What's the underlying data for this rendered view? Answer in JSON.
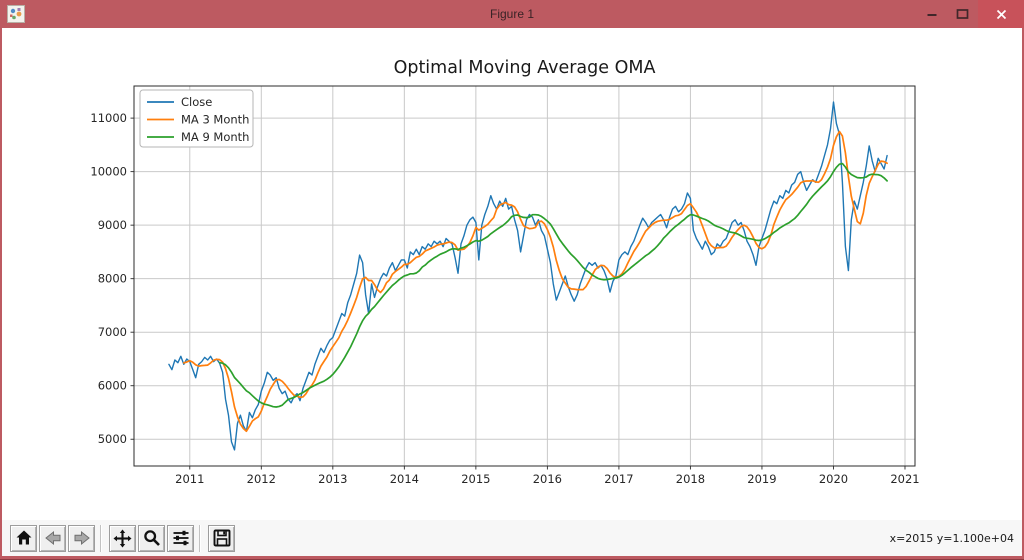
{
  "window": {
    "title": "Figure 1",
    "controls": {
      "minimize_icon": "minimize-icon",
      "maximize_icon": "maximize-icon",
      "close_icon": "close-icon"
    }
  },
  "colors": {
    "titlebar": "#bd5a61",
    "titlebar_text": "#3a2326",
    "close_button_bg": "#c8525a",
    "close_glyph": "#ffffff",
    "control_glyph": "#40272a",
    "canvas_bg": "#ffffff",
    "toolbar_bg": "#f7f7f7",
    "grid": "#c9c9c9",
    "axes_edge": "#2b2b2b",
    "series_close": "#1f77b4",
    "series_ma3": "#ff7f0e",
    "series_ma9": "#2ca02c"
  },
  "toolbar": {
    "buttons": [
      {
        "name": "home",
        "icon": "home-icon"
      },
      {
        "name": "back",
        "icon": "back-arrow-icon",
        "disabled": true
      },
      {
        "name": "forward",
        "icon": "forward-arrow-icon",
        "disabled": true
      },
      {
        "name": "pan",
        "icon": "pan-arrows-icon"
      },
      {
        "name": "zoom",
        "icon": "magnifier-icon"
      },
      {
        "name": "configure-subplots",
        "icon": "sliders-icon"
      },
      {
        "name": "save",
        "icon": "floppy-disk-icon"
      }
    ],
    "status_text": "x=2015 y=1.100e+04"
  },
  "chart_data": {
    "type": "line",
    "title": "Optimal Moving Average OMA",
    "xlabel": "",
    "ylabel": "",
    "xlim": [
      2010.22,
      2021.14
    ],
    "ylim": [
      4500,
      11600
    ],
    "x_ticks": [
      2011,
      2012,
      2013,
      2014,
      2015,
      2016,
      2017,
      2018,
      2019,
      2020,
      2021
    ],
    "y_ticks": [
      5000,
      6000,
      7000,
      8000,
      9000,
      10000,
      11000
    ],
    "grid": true,
    "legend": {
      "position": "upper left",
      "entries": [
        "Close",
        "MA 3 Month",
        "MA 9 Month"
      ]
    },
    "x_start": 2010.7083,
    "x_step": 0.0416667,
    "series": [
      {
        "name": "Close",
        "color": "#1f77b4",
        "values": [
          6400,
          6300,
          6480,
          6430,
          6550,
          6400,
          6500,
          6450,
          6300,
          6150,
          6400,
          6450,
          6530,
          6480,
          6550,
          6450,
          6500,
          6420,
          6250,
          5750,
          5450,
          4950,
          4800,
          5300,
          5450,
          5250,
          5150,
          5500,
          5400,
          5550,
          5650,
          5900,
          6050,
          6250,
          6200,
          6100,
          6150,
          5950,
          5850,
          5900,
          5750,
          5680,
          5800,
          5850,
          5720,
          5950,
          6100,
          6250,
          6200,
          6400,
          6550,
          6700,
          6620,
          6750,
          6850,
          6900,
          7050,
          7200,
          7350,
          7300,
          7550,
          7700,
          7900,
          8100,
          8440,
          8300,
          7700,
          7350,
          7900,
          7650,
          7850,
          8000,
          8100,
          8050,
          8200,
          8300,
          8150,
          8250,
          8350,
          8350,
          8200,
          8500,
          8450,
          8550,
          8450,
          8600,
          8550,
          8650,
          8600,
          8700,
          8650,
          8700,
          8600,
          8750,
          8700,
          8650,
          8400,
          8100,
          8650,
          8800,
          9000,
          9100,
          9150,
          9050,
          8350,
          9000,
          9200,
          9350,
          9550,
          9400,
          9300,
          9450,
          9350,
          9500,
          9300,
          9350,
          9100,
          8900,
          8500,
          8800,
          9100,
          9200,
          9150,
          9000,
          9100,
          8900,
          8800,
          8550,
          8300,
          7900,
          7600,
          7750,
          7900,
          8050,
          7850,
          7700,
          7580,
          7700,
          7900,
          8050,
          8200,
          8300,
          8250,
          8300,
          8200,
          8250,
          8150,
          8000,
          7750,
          7950,
          8050,
          8350,
          8450,
          8500,
          8450,
          8600,
          8700,
          8850,
          9000,
          9130,
          9050,
          8950,
          9050,
          9100,
          9150,
          9200,
          9100,
          8950,
          9150,
          9300,
          9350,
          9250,
          9300,
          9400,
          9600,
          9500,
          8900,
          8750,
          8650,
          8550,
          8700,
          8600,
          8450,
          8500,
          8650,
          8600,
          8700,
          8750,
          8900,
          9050,
          9100,
          9000,
          9050,
          8900,
          8700,
          8600,
          8450,
          8250,
          8600,
          8750,
          8900,
          9100,
          9300,
          9450,
          9400,
          9550,
          9500,
          9650,
          9600,
          9750,
          9800,
          9950,
          10000,
          9800,
          9650,
          9750,
          9850,
          9800,
          9950,
          10100,
          10300,
          10500,
          10800,
          11300,
          10900,
          10700,
          9800,
          8600,
          8150,
          9100,
          9450,
          9300,
          9550,
          9800,
          10100,
          10480,
          10200,
          10000,
          10250,
          10150,
          10050,
          10300
        ]
      },
      {
        "name": "MA 3 Month",
        "color": "#ff7f0e",
        "derived": "rolling_mean_of_close",
        "window_samples": 6
      },
      {
        "name": "MA 9 Month",
        "color": "#2ca02c",
        "derived": "rolling_mean_of_close",
        "window_samples": 18
      }
    ]
  }
}
